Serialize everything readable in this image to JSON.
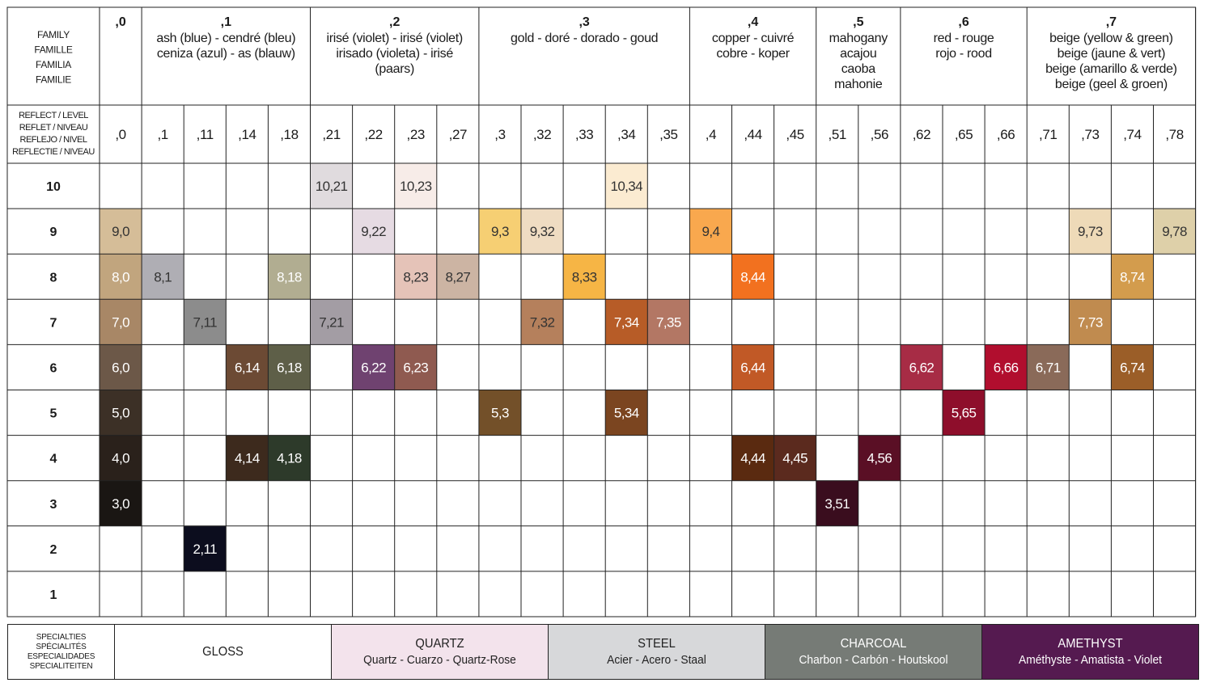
{
  "header": {
    "family_label": [
      "FAMILY",
      "FAMILLE",
      "FAMILIA",
      "FAMILIE"
    ],
    "reflect_label": [
      "REFLECT / LEVEL",
      "REFLET / NIVEAU",
      "REFLEJO / NIVEL",
      "REFLECTIE / NIVEAU"
    ]
  },
  "families": [
    {
      "code": ",0",
      "lines": [],
      "reflects": [
        ",0"
      ]
    },
    {
      "code": ",1",
      "lines": [
        "ash (blue) - cendré (bleu)",
        "ceniza (azul) - as (blauw)"
      ],
      "reflects": [
        ",1",
        ",11",
        ",14",
        ",18"
      ]
    },
    {
      "code": ",2",
      "lines": [
        "irisé (violet) - irisé (violet)",
        "irisado (violeta) - irisé",
        "(paars)"
      ],
      "reflects": [
        ",21",
        ",22",
        ",23",
        ",27"
      ]
    },
    {
      "code": ",3",
      "lines": [
        "gold - doré - dorado - goud"
      ],
      "reflects": [
        ",3",
        ",32",
        ",33",
        ",34",
        ",35"
      ]
    },
    {
      "code": ",4",
      "lines": [
        "copper - cuivré",
        "cobre - koper"
      ],
      "reflects": [
        ",4",
        ",44",
        ",45"
      ]
    },
    {
      "code": ",5",
      "lines": [
        "mahogany",
        "acajou",
        "caoba",
        "mahonie"
      ],
      "reflects": [
        ",51",
        ",56"
      ]
    },
    {
      "code": ",6",
      "lines": [
        "red - rouge",
        "rojo - rood"
      ],
      "reflects": [
        ",62",
        ",65",
        ",66"
      ]
    },
    {
      "code": ",7",
      "lines": [
        "beige (yellow & green)",
        "beige (jaune & vert)",
        "beige (amarillo & verde)",
        "beige (geel & groen)"
      ],
      "reflects": [
        ",71",
        ",73",
        ",74",
        ",78"
      ]
    }
  ],
  "levels": [
    "10",
    "9",
    "8",
    "7",
    "6",
    "5",
    "4",
    "3",
    "2",
    "1"
  ],
  "shades": [
    {
      "label": "10,21",
      "level": "10",
      "reflect": ",21",
      "color": "#e0dbde",
      "text_color": "#333333"
    },
    {
      "label": "10,23",
      "level": "10",
      "reflect": ",23",
      "color": "#f7ece8",
      "text_color": "#333333"
    },
    {
      "label": "10,34",
      "level": "10",
      "reflect": ",34",
      "color": "#fbebd1",
      "text_color": "#333333"
    },
    {
      "label": "9,0",
      "level": "9",
      "reflect": ",0",
      "color": "#d5bd98",
      "text_color": "#333333"
    },
    {
      "label": "9,22",
      "level": "9",
      "reflect": ",22",
      "color": "#e6dbe3",
      "text_color": "#333333"
    },
    {
      "label": "9,3",
      "level": "9",
      "reflect": ",3",
      "color": "#f6cf73",
      "text_color": "#333333"
    },
    {
      "label": "9,32",
      "level": "9",
      "reflect": ",32",
      "color": "#efdcc2",
      "text_color": "#333333"
    },
    {
      "label": "9,4",
      "level": "9",
      "reflect": ",4",
      "color": "#f9a84e",
      "text_color": "#333333"
    },
    {
      "label": "9,73",
      "level": "9",
      "reflect": ",73",
      "color": "#eedab8",
      "text_color": "#333333"
    },
    {
      "label": "9,78",
      "level": "9",
      "reflect": ",78",
      "color": "#ded0a9",
      "text_color": "#333333"
    },
    {
      "label": "8,0",
      "level": "8",
      "reflect": ",0",
      "color": "#c1a57e",
      "text_color": "#ffffff"
    },
    {
      "label": "8,1",
      "level": "8",
      "reflect": ",1",
      "color": "#afaeb4",
      "text_color": "#333333"
    },
    {
      "label": "8,18",
      "level": "8",
      "reflect": ",18",
      "color": "#b1ad91",
      "text_color": "#ffffff"
    },
    {
      "label": "8,23",
      "level": "8",
      "reflect": ",23",
      "color": "#e5c3b8",
      "text_color": "#333333"
    },
    {
      "label": "8,27",
      "level": "8",
      "reflect": ",27",
      "color": "#ccb4a3",
      "text_color": "#333333"
    },
    {
      "label": "8,33",
      "level": "8",
      "reflect": ",33",
      "color": "#f6b545",
      "text_color": "#333333"
    },
    {
      "label": "8,44",
      "level": "8",
      "reflect": ",44",
      "color": "#f2711f",
      "text_color": "#ffffff"
    },
    {
      "label": "8,74",
      "level": "8",
      "reflect": ",74",
      "color": "#d39c4d",
      "text_color": "#ffffff"
    },
    {
      "label": "7,0",
      "level": "7",
      "reflect": ",0",
      "color": "#a88766",
      "text_color": "#ffffff"
    },
    {
      "label": "7,11",
      "level": "7",
      "reflect": ",11",
      "color": "#8c8c8c",
      "text_color": "#333333"
    },
    {
      "label": "7,21",
      "level": "7",
      "reflect": ",21",
      "color": "#a39da4",
      "text_color": "#333333"
    },
    {
      "label": "7,32",
      "level": "7",
      "reflect": ",32",
      "color": "#b5805c",
      "text_color": "#333333"
    },
    {
      "label": "7,34",
      "level": "7",
      "reflect": ",34",
      "color": "#b75c27",
      "text_color": "#ffffff"
    },
    {
      "label": "7,35",
      "level": "7",
      "reflect": ",35",
      "color": "#b37764",
      "text_color": "#ffffff"
    },
    {
      "label": "7,73",
      "level": "7",
      "reflect": ",73",
      "color": "#c08b4f",
      "text_color": "#ffffff"
    },
    {
      "label": "6,0",
      "level": "6",
      "reflect": ",0",
      "color": "#6c5848",
      "text_color": "#ffffff"
    },
    {
      "label": "6,14",
      "level": "6",
      "reflect": ",14",
      "color": "#6c4a34",
      "text_color": "#ffffff"
    },
    {
      "label": "6,18",
      "level": "6",
      "reflect": ",18",
      "color": "#5e5f48",
      "text_color": "#ffffff"
    },
    {
      "label": "6,22",
      "level": "6",
      "reflect": ",22",
      "color": "#6f4270",
      "text_color": "#ffffff"
    },
    {
      "label": "6,23",
      "level": "6",
      "reflect": ",23",
      "color": "#8f5a50",
      "text_color": "#ffffff"
    },
    {
      "label": "6,44",
      "level": "6",
      "reflect": ",44",
      "color": "#c15926",
      "text_color": "#ffffff"
    },
    {
      "label": "6,62",
      "level": "6",
      "reflect": ",62",
      "color": "#a72c45",
      "text_color": "#ffffff"
    },
    {
      "label": "6,66",
      "level": "6",
      "reflect": ",66",
      "color": "#b10e2e",
      "text_color": "#ffffff"
    },
    {
      "label": "6,71",
      "level": "6",
      "reflect": ",71",
      "color": "#8a6a59",
      "text_color": "#ffffff"
    },
    {
      "label": "6,74",
      "level": "6",
      "reflect": ",74",
      "color": "#9b5e28",
      "text_color": "#ffffff"
    },
    {
      "label": "5,0",
      "level": "5",
      "reflect": ",0",
      "color": "#3c3026",
      "text_color": "#ffffff"
    },
    {
      "label": "5,3",
      "level": "5",
      "reflect": ",3",
      "color": "#735029",
      "text_color": "#ffffff"
    },
    {
      "label": "5,34",
      "level": "5",
      "reflect": ",34",
      "color": "#7b4520",
      "text_color": "#ffffff"
    },
    {
      "label": "5,65",
      "level": "5",
      "reflect": ",65",
      "color": "#8e0e2b",
      "text_color": "#ffffff"
    },
    {
      "label": "4,0",
      "level": "4",
      "reflect": ",0",
      "color": "#2a211b",
      "text_color": "#ffffff"
    },
    {
      "label": "4,14",
      "level": "4",
      "reflect": ",14",
      "color": "#3d2a1d",
      "text_color": "#ffffff"
    },
    {
      "label": "4,18",
      "level": "4",
      "reflect": ",18",
      "color": "#2d3a2a",
      "text_color": "#ffffff"
    },
    {
      "label": "4,44",
      "level": "4",
      "reflect": ",44",
      "color": "#5a2a10",
      "text_color": "#ffffff"
    },
    {
      "label": "4,45",
      "level": "4",
      "reflect": ",45",
      "color": "#5b2a1e",
      "text_color": "#ffffff"
    },
    {
      "label": "4,56",
      "level": "4",
      "reflect": ",56",
      "color": "#5a0f25",
      "text_color": "#ffffff"
    },
    {
      "label": "3,0",
      "level": "3",
      "reflect": ",0",
      "color": "#1a1613",
      "text_color": "#ffffff"
    },
    {
      "label": "3,51",
      "level": "3",
      "reflect": ",51",
      "color": "#3a0d1e",
      "text_color": "#ffffff"
    },
    {
      "label": "2,11",
      "level": "2",
      "reflect": ",11",
      "color": "#0c0d1e",
      "text_color": "#ffffff"
    }
  ],
  "specialties": {
    "label": [
      "SPECIALTIES",
      "SPÉCIALITÉS",
      "ESPECIALIDADES",
      "SPECIALITEITEN"
    ],
    "items": [
      {
        "name": "GLOSS",
        "sub": "",
        "bg": "#ffffff",
        "fg": "#222222"
      },
      {
        "name": "QUARTZ",
        "sub": "Quartz - Cuarzo - Quartz-Rose",
        "bg": "#f3e3ec",
        "fg": "#222222"
      },
      {
        "name": "STEEL",
        "sub": "Acier - Acero - Staal",
        "bg": "#d7d8da",
        "fg": "#222222"
      },
      {
        "name": "CHARCOAL",
        "sub": "Charbon - Carbón - Houtskool",
        "bg": "#767b76",
        "fg": "#ffffff"
      },
      {
        "name": "AMETHYST",
        "sub": "Améthyste - Amatista - Violet",
        "bg": "#551a50",
        "fg": "#ffffff"
      }
    ]
  }
}
